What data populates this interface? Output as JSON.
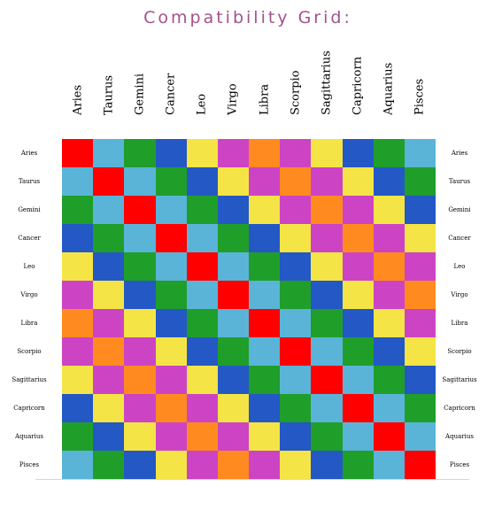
{
  "title": "Compatibility Grid:",
  "signs": [
    "Aries",
    "Taurus",
    "Gemini",
    "Cancer",
    "Leo",
    "Virgo",
    "Libra",
    "Scorpio",
    "Sagittarius",
    "Capricorn",
    "Aquarius",
    "Pisces"
  ],
  "colors": {
    "R": "#ff0000",
    "L": "#5ab4d8",
    "G": "#1f9e2a",
    "B": "#2458c4",
    "Y": "#f5e446",
    "M": "#cc44c4",
    "O": "#ff8a1f"
  },
  "grid": [
    [
      "R",
      "L",
      "G",
      "B",
      "Y",
      "M",
      "O",
      "M",
      "Y",
      "B",
      "G",
      "L"
    ],
    [
      "L",
      "R",
      "L",
      "G",
      "B",
      "Y",
      "M",
      "O",
      "M",
      "Y",
      "B",
      "G"
    ],
    [
      "G",
      "L",
      "R",
      "L",
      "G",
      "B",
      "Y",
      "M",
      "O",
      "M",
      "Y",
      "B"
    ],
    [
      "B",
      "G",
      "L",
      "R",
      "L",
      "G",
      "B",
      "Y",
      "M",
      "O",
      "M",
      "Y"
    ],
    [
      "Y",
      "B",
      "G",
      "L",
      "R",
      "L",
      "G",
      "B",
      "Y",
      "M",
      "O",
      "M"
    ],
    [
      "M",
      "Y",
      "B",
      "G",
      "L",
      "R",
      "L",
      "G",
      "B",
      "Y",
      "M",
      "O"
    ],
    [
      "O",
      "M",
      "Y",
      "B",
      "G",
      "L",
      "R",
      "L",
      "G",
      "B",
      "Y",
      "M"
    ],
    [
      "M",
      "O",
      "M",
      "Y",
      "B",
      "G",
      "L",
      "R",
      "L",
      "G",
      "B",
      "Y"
    ],
    [
      "Y",
      "M",
      "O",
      "M",
      "Y",
      "B",
      "G",
      "L",
      "R",
      "L",
      "G",
      "B"
    ],
    [
      "B",
      "Y",
      "M",
      "O",
      "M",
      "Y",
      "B",
      "G",
      "L",
      "R",
      "L",
      "G"
    ],
    [
      "G",
      "B",
      "Y",
      "M",
      "O",
      "M",
      "Y",
      "B",
      "G",
      "L",
      "R",
      "L"
    ],
    [
      "L",
      "G",
      "B",
      "Y",
      "M",
      "O",
      "M",
      "Y",
      "B",
      "G",
      "L",
      "R"
    ]
  ]
}
